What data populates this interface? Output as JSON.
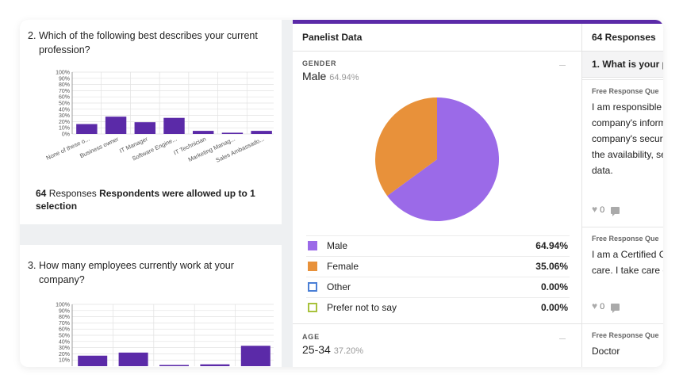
{
  "q2": {
    "number": "2.",
    "title_line1": "Which of the following best describes your current",
    "title_line2": "profession?",
    "y_ticks": [
      "100%",
      "90%",
      "80%",
      "70%",
      "60%",
      "50%",
      "40%",
      "30%",
      "20%",
      "10%",
      "0%"
    ],
    "responses_count": "64",
    "responses_word": "Responses",
    "responses_note": "Respondents were allowed up to 1",
    "responses_note2": "selection"
  },
  "q3": {
    "number": "3.",
    "title_line1": "How many employees currently work at your",
    "title_line2": "company?",
    "y_ticks": [
      "100%",
      "90%",
      "80%",
      "70%",
      "60%",
      "50%",
      "40%",
      "30%",
      "20%",
      "10%"
    ]
  },
  "panelist": {
    "header": "Panelist Data",
    "gender_label": "GENDER",
    "gender_value": "Male",
    "gender_pct": "64.94%",
    "legend": [
      {
        "label": "Male",
        "value": "64.94%",
        "color": "#9b6ae8",
        "filled": true
      },
      {
        "label": "Female",
        "value": "35.06%",
        "color": "#e8913a",
        "filled": true
      },
      {
        "label": "Other",
        "value": "0.00%",
        "color": "#4a7fd6",
        "filled": false
      },
      {
        "label": "Prefer not to say",
        "value": "0.00%",
        "color": "#a8c23c",
        "filled": false
      }
    ],
    "age_label": "AGE",
    "age_value": "25-34",
    "age_pct": "37.20%"
  },
  "responses": {
    "header": "64 Responses",
    "question": "1. What is your p",
    "items": [
      {
        "type": "Free Response Que",
        "lines": [
          "I am responsible",
          "company's inform",
          "company's securi",
          "the availability, se",
          "data."
        ],
        "likes": "0"
      },
      {
        "type": "Free Response Que",
        "lines": [
          "I am a Certified C",
          "care. I take care c"
        ],
        "likes": "0"
      },
      {
        "type": "Free Response Que",
        "lines": [
          "Doctor"
        ],
        "likes": ""
      }
    ]
  },
  "chart_data": [
    {
      "type": "bar",
      "title": "Which of the following best describes your current profession?",
      "categories": [
        "None of these o...",
        "Business owner",
        "IT Manager",
        "Software Engine...",
        "IT Technician",
        "Marketing Manag...",
        "Sales Ambassado..."
      ],
      "values": [
        16,
        28,
        19,
        26,
        5,
        2,
        5
      ],
      "ylim": [
        0,
        100
      ],
      "grid": true,
      "color": "#5b2aa8"
    },
    {
      "type": "bar",
      "title": "How many employees currently work at your company?",
      "categories": [
        "",
        "",
        "",
        "",
        ""
      ],
      "values": [
        17,
        22,
        2,
        3,
        33
      ],
      "ylim": [
        0,
        100
      ],
      "grid": true,
      "color": "#5b2aa8"
    },
    {
      "type": "pie",
      "title": "",
      "categories": [
        "Male",
        "Female",
        "Other",
        "Prefer not to say"
      ],
      "values": [
        64.94,
        35.06,
        0,
        0
      ],
      "colors": [
        "#9b6ae8",
        "#e8913a",
        "#4a7fd6",
        "#a8c23c"
      ]
    }
  ]
}
